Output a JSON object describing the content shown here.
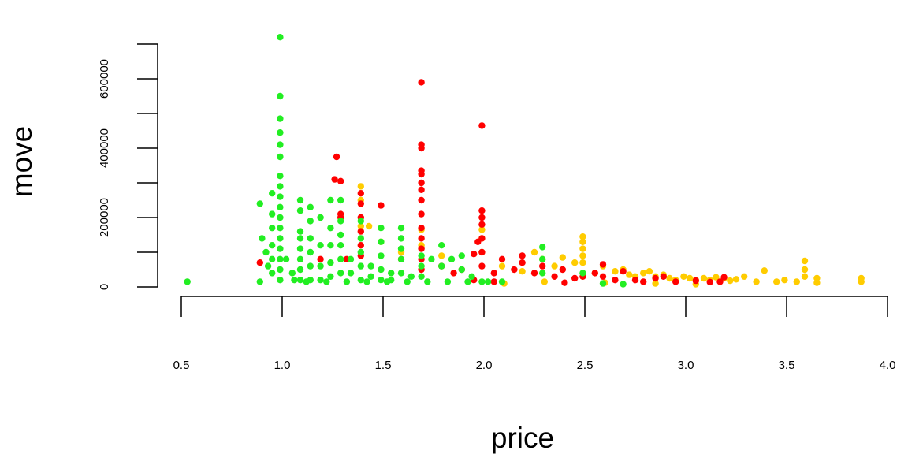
{
  "chart_data": {
    "type": "scatter",
    "title": "",
    "xlabel": "price",
    "ylabel": "move",
    "xlim": [
      0.5,
      4.0
    ],
    "ylim": [
      0,
      700000
    ],
    "x_ticks": [
      0.5,
      1.0,
      1.5,
      2.0,
      2.5,
      3.0,
      3.5,
      4.0
    ],
    "x_tick_labels": [
      "0.5",
      "1.0",
      "1.5",
      "2.0",
      "2.5",
      "3.0",
      "3.5",
      "4.0"
    ],
    "y_ticks": [
      0,
      200000,
      400000,
      600000
    ],
    "y_tick_labels": [
      "0",
      "200000",
      "400000",
      "600000"
    ],
    "grid": false,
    "legend": "none",
    "series": [
      {
        "color": "#FFCC00",
        "points": [
          [
            1.39,
            290000
          ],
          [
            1.39,
            250000
          ],
          [
            1.39,
            175000
          ],
          [
            1.43,
            175000
          ],
          [
            1.49,
            130000
          ],
          [
            1.59,
            100000
          ],
          [
            1.69,
            165000
          ],
          [
            1.69,
            120000
          ],
          [
            1.79,
            90000
          ],
          [
            1.99,
            165000
          ],
          [
            1.99,
            140000
          ],
          [
            1.99,
            100000
          ],
          [
            2.09,
            60000
          ],
          [
            2.19,
            45000
          ],
          [
            2.25,
            100000
          ],
          [
            2.29,
            80000
          ],
          [
            2.35,
            60000
          ],
          [
            2.39,
            85000
          ],
          [
            2.45,
            70000
          ],
          [
            2.49,
            145000
          ],
          [
            2.49,
            130000
          ],
          [
            2.49,
            110000
          ],
          [
            2.49,
            90000
          ],
          [
            2.49,
            70000
          ],
          [
            2.55,
            40000
          ],
          [
            2.59,
            60000
          ],
          [
            2.65,
            45000
          ],
          [
            2.69,
            50000
          ],
          [
            2.72,
            35000
          ],
          [
            2.75,
            30000
          ],
          [
            2.79,
            40000
          ],
          [
            2.82,
            45000
          ],
          [
            2.85,
            30000
          ],
          [
            2.89,
            35000
          ],
          [
            2.92,
            25000
          ],
          [
            2.95,
            20000
          ],
          [
            2.99,
            30000
          ],
          [
            3.02,
            25000
          ],
          [
            3.05,
            20000
          ],
          [
            3.09,
            25000
          ],
          [
            3.12,
            20000
          ],
          [
            3.15,
            28000
          ],
          [
            3.19,
            25000
          ],
          [
            3.22,
            18000
          ],
          [
            3.25,
            22000
          ],
          [
            3.29,
            30000
          ],
          [
            3.35,
            15000
          ],
          [
            3.39,
            47000
          ],
          [
            3.45,
            15000
          ],
          [
            3.49,
            20000
          ],
          [
            3.55,
            15000
          ],
          [
            3.59,
            75000
          ],
          [
            3.59,
            50000
          ],
          [
            3.59,
            30000
          ],
          [
            3.65,
            25000
          ],
          [
            3.65,
            12000
          ],
          [
            3.87,
            25000
          ],
          [
            3.87,
            15000
          ],
          [
            3.05,
            8000
          ],
          [
            2.85,
            10000
          ],
          [
            2.6,
            12000
          ],
          [
            2.3,
            15000
          ],
          [
            2.1,
            10000
          ]
        ]
      },
      {
        "color": "#FF0000",
        "points": [
          [
            0.89,
            70000
          ],
          [
            1.19,
            80000
          ],
          [
            1.26,
            310000
          ],
          [
            1.27,
            375000
          ],
          [
            1.29,
            305000
          ],
          [
            1.29,
            210000
          ],
          [
            1.29,
            200000
          ],
          [
            1.32,
            80000
          ],
          [
            1.39,
            270000
          ],
          [
            1.39,
            240000
          ],
          [
            1.39,
            200000
          ],
          [
            1.39,
            160000
          ],
          [
            1.39,
            120000
          ],
          [
            1.39,
            90000
          ],
          [
            1.49,
            235000
          ],
          [
            1.59,
            80000
          ],
          [
            1.69,
            590000
          ],
          [
            1.69,
            410000
          ],
          [
            1.69,
            400000
          ],
          [
            1.69,
            335000
          ],
          [
            1.69,
            325000
          ],
          [
            1.69,
            300000
          ],
          [
            1.69,
            280000
          ],
          [
            1.69,
            250000
          ],
          [
            1.69,
            210000
          ],
          [
            1.69,
            170000
          ],
          [
            1.69,
            140000
          ],
          [
            1.69,
            110000
          ],
          [
            1.69,
            80000
          ],
          [
            1.69,
            50000
          ],
          [
            1.79,
            60000
          ],
          [
            1.85,
            40000
          ],
          [
            1.89,
            50000
          ],
          [
            1.95,
            95000
          ],
          [
            1.97,
            130000
          ],
          [
            1.99,
            465000
          ],
          [
            1.99,
            220000
          ],
          [
            1.99,
            200000
          ],
          [
            1.99,
            180000
          ],
          [
            1.99,
            140000
          ],
          [
            1.99,
            100000
          ],
          [
            1.99,
            60000
          ],
          [
            2.05,
            40000
          ],
          [
            2.09,
            80000
          ],
          [
            2.15,
            50000
          ],
          [
            2.19,
            90000
          ],
          [
            2.19,
            70000
          ],
          [
            2.25,
            40000
          ],
          [
            2.29,
            60000
          ],
          [
            2.35,
            30000
          ],
          [
            2.39,
            50000
          ],
          [
            2.45,
            25000
          ],
          [
            2.49,
            30000
          ],
          [
            2.55,
            40000
          ],
          [
            2.59,
            65000
          ],
          [
            2.59,
            30000
          ],
          [
            2.65,
            20000
          ],
          [
            2.69,
            45000
          ],
          [
            2.75,
            20000
          ],
          [
            2.79,
            15000
          ],
          [
            2.85,
            25000
          ],
          [
            2.89,
            30000
          ],
          [
            2.95,
            15000
          ],
          [
            3.05,
            18000
          ],
          [
            3.12,
            14000
          ],
          [
            3.17,
            15000
          ],
          [
            3.19,
            28000
          ],
          [
            2.05,
            15000
          ],
          [
            1.95,
            20000
          ],
          [
            2.4,
            12000
          ]
        ]
      },
      {
        "color": "#22EE22",
        "points": [
          [
            0.53,
            15000
          ],
          [
            0.89,
            15000
          ],
          [
            0.89,
            240000
          ],
          [
            0.9,
            140000
          ],
          [
            0.92,
            100000
          ],
          [
            0.93,
            60000
          ],
          [
            0.95,
            270000
          ],
          [
            0.95,
            210000
          ],
          [
            0.95,
            170000
          ],
          [
            0.95,
            120000
          ],
          [
            0.95,
            80000
          ],
          [
            0.95,
            40000
          ],
          [
            0.99,
            720000
          ],
          [
            0.99,
            550000
          ],
          [
            0.99,
            485000
          ],
          [
            0.99,
            445000
          ],
          [
            0.99,
            410000
          ],
          [
            0.99,
            375000
          ],
          [
            0.99,
            320000
          ],
          [
            0.99,
            290000
          ],
          [
            0.99,
            260000
          ],
          [
            0.99,
            230000
          ],
          [
            0.99,
            200000
          ],
          [
            0.99,
            170000
          ],
          [
            0.99,
            140000
          ],
          [
            0.99,
            110000
          ],
          [
            0.99,
            80000
          ],
          [
            0.99,
            50000
          ],
          [
            0.99,
            20000
          ],
          [
            1.02,
            80000
          ],
          [
            1.05,
            40000
          ],
          [
            1.06,
            20000
          ],
          [
            1.09,
            250000
          ],
          [
            1.09,
            220000
          ],
          [
            1.09,
            160000
          ],
          [
            1.09,
            140000
          ],
          [
            1.09,
            110000
          ],
          [
            1.09,
            80000
          ],
          [
            1.09,
            50000
          ],
          [
            1.09,
            20000
          ],
          [
            1.14,
            230000
          ],
          [
            1.14,
            190000
          ],
          [
            1.14,
            140000
          ],
          [
            1.14,
            100000
          ],
          [
            1.14,
            60000
          ],
          [
            1.14,
            20000
          ],
          [
            1.19,
            200000
          ],
          [
            1.19,
            120000
          ],
          [
            1.19,
            60000
          ],
          [
            1.19,
            20000
          ],
          [
            1.24,
            250000
          ],
          [
            1.24,
            170000
          ],
          [
            1.24,
            120000
          ],
          [
            1.24,
            70000
          ],
          [
            1.24,
            30000
          ],
          [
            1.29,
            250000
          ],
          [
            1.29,
            190000
          ],
          [
            1.29,
            150000
          ],
          [
            1.29,
            120000
          ],
          [
            1.29,
            80000
          ],
          [
            1.29,
            40000
          ],
          [
            1.34,
            80000
          ],
          [
            1.34,
            40000
          ],
          [
            1.39,
            190000
          ],
          [
            1.39,
            140000
          ],
          [
            1.39,
            100000
          ],
          [
            1.39,
            60000
          ],
          [
            1.39,
            20000
          ],
          [
            1.44,
            60000
          ],
          [
            1.44,
            30000
          ],
          [
            1.49,
            170000
          ],
          [
            1.49,
            130000
          ],
          [
            1.49,
            90000
          ],
          [
            1.49,
            50000
          ],
          [
            1.49,
            20000
          ],
          [
            1.54,
            40000
          ],
          [
            1.54,
            20000
          ],
          [
            1.59,
            170000
          ],
          [
            1.59,
            140000
          ],
          [
            1.59,
            110000
          ],
          [
            1.59,
            80000
          ],
          [
            1.59,
            40000
          ],
          [
            1.64,
            30000
          ],
          [
            1.69,
            90000
          ],
          [
            1.69,
            60000
          ],
          [
            1.69,
            30000
          ],
          [
            1.74,
            80000
          ],
          [
            1.79,
            120000
          ],
          [
            1.79,
            60000
          ],
          [
            1.84,
            80000
          ],
          [
            1.89,
            90000
          ],
          [
            1.89,
            50000
          ],
          [
            1.94,
            30000
          ],
          [
            1.99,
            15000
          ],
          [
            2.09,
            15000
          ],
          [
            2.29,
            115000
          ],
          [
            2.29,
            80000
          ],
          [
            2.29,
            40000
          ],
          [
            2.49,
            40000
          ],
          [
            2.59,
            10000
          ],
          [
            2.69,
            8000
          ],
          [
            1.12,
            15000
          ],
          [
            1.22,
            15000
          ],
          [
            1.32,
            15000
          ],
          [
            1.42,
            15000
          ],
          [
            1.52,
            15000
          ],
          [
            1.62,
            15000
          ],
          [
            1.72,
            15000
          ],
          [
            1.82,
            15000
          ],
          [
            1.92,
            15000
          ],
          [
            2.02,
            15000
          ]
        ]
      }
    ]
  }
}
